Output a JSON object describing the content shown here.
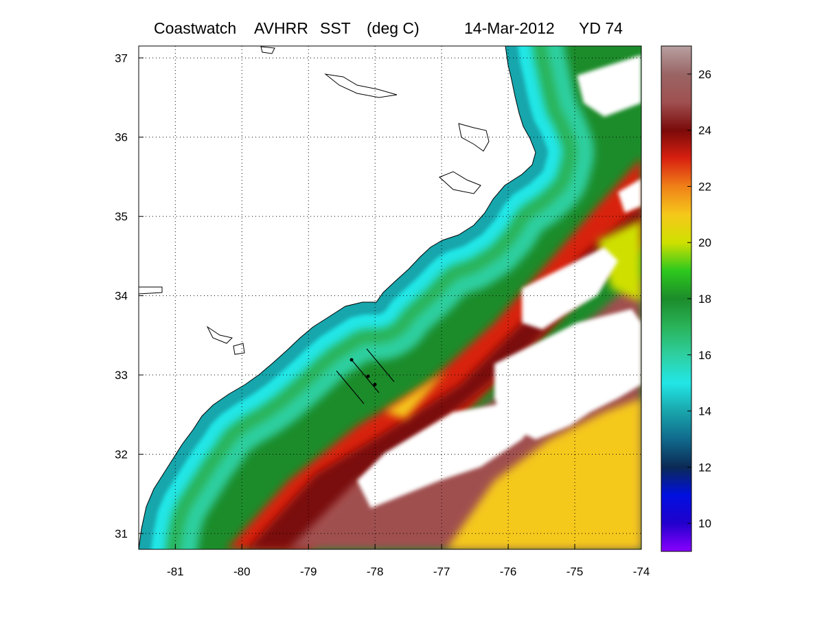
{
  "title": {
    "product": "Coastwatch",
    "sensor": "AVHRR",
    "variable": "SST",
    "units": "(deg C)",
    "date": "14-Mar-2012",
    "yearday": "YD 74"
  },
  "map": {
    "lon_range": [
      -81.55,
      -74
    ],
    "lat_range": [
      30.8,
      37.15
    ],
    "grid": "dotted",
    "lon_ticks": [
      "-81",
      "-80",
      "-79",
      "-78",
      "-77",
      "-76",
      "-75",
      "-74"
    ],
    "lat_ticks": [
      "37",
      "36",
      "35",
      "34",
      "33",
      "32",
      "31"
    ]
  },
  "colorbar": {
    "range": [
      9,
      27
    ],
    "ticks": [
      "26",
      "24",
      "22",
      "20",
      "18",
      "16",
      "14",
      "12",
      "10"
    ],
    "colors": {
      "c9": "#8a00ff",
      "c10": "#2200cc",
      "c11": "#0010e0",
      "c12": "#0b2a55",
      "c13": "#106a8c",
      "c14": "#19a6ac",
      "c15": "#22e6e6",
      "c16": "#2ecfa0",
      "c17": "#2ab35a",
      "c18": "#1c8c2a",
      "c19": "#2ec81e",
      "c20": "#cfe000",
      "c21": "#f5c81a",
      "c22": "#f08018",
      "c23": "#d82010",
      "c24": "#7a0a0a",
      "c25": "#a05050",
      "c26": "#9a6565",
      "c27": "#b8a0a0"
    }
  },
  "colors": {
    "land": "#ffffff",
    "coast": "#000000",
    "cloud": "#ffffff",
    "grid": "#000000"
  }
}
